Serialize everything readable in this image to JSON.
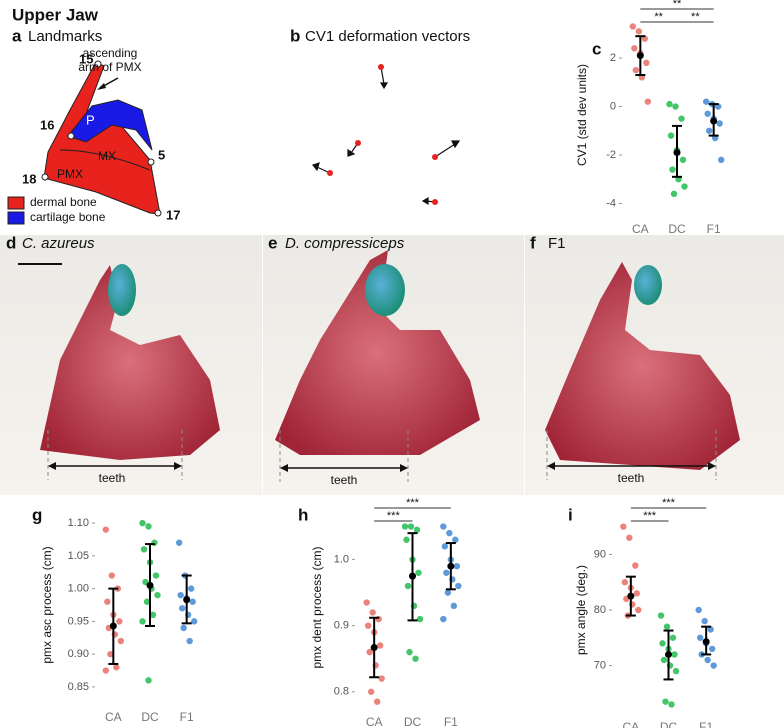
{
  "header": {
    "title": "Upper Jaw"
  },
  "panel_a": {
    "label": "a",
    "title": "Landmarks",
    "annotation": [
      "ascending",
      "arm of PMX"
    ],
    "landmarks": [
      "15",
      "16",
      "5",
      "18",
      "17"
    ],
    "regions": [
      "P",
      "MX",
      "PMX"
    ],
    "legend": [
      {
        "label": "dermal bone",
        "color": "#e8231d"
      },
      {
        "label": "cartilage bone",
        "color": "#1a1ae6"
      }
    ]
  },
  "panel_b": {
    "label": "b",
    "title": "CV1 deformation vectors"
  },
  "photos": [
    {
      "label": "d",
      "title": "C. azureus",
      "measure": "teeth"
    },
    {
      "label": "e",
      "title": "D. compressiceps",
      "measure": "teeth"
    },
    {
      "label": "f",
      "title": "F1",
      "measure": "teeth"
    }
  ],
  "chart_data": [
    {
      "type": "strip",
      "panel_label": "c",
      "ylabel": "CV1 (std dev units)",
      "categories": [
        "CA",
        "DC",
        "F1"
      ],
      "series": [
        {
          "color": "#e8756e",
          "values": [
            3.3,
            3.1,
            2.8,
            2.4,
            2.2,
            1.8,
            1.5,
            1.2,
            0.2
          ]
        },
        {
          "color": "#2fbf5a",
          "values": [
            0.1,
            0,
            -0.5,
            -1.2,
            -1.8,
            -2.2,
            -2.6,
            -3,
            -3.3,
            -3.6
          ]
        },
        {
          "color": "#4d8fd6",
          "values": [
            0.2,
            0.1,
            0,
            -0.3,
            -0.5,
            -0.7,
            -1.0,
            -1.3,
            -2.2
          ]
        }
      ],
      "means": [
        2.1,
        -1.9,
        -0.6
      ],
      "err_low": [
        1.3,
        -2.9,
        -1.2
      ],
      "err_high": [
        2.9,
        -0.8,
        0.1
      ],
      "ylim": [
        -4.35,
        3.65
      ],
      "yticks": [
        2,
        0,
        -2,
        -4
      ],
      "brackets": [
        {
          "from": "CA",
          "to": "DC",
          "text": "**"
        },
        {
          "from": "DC",
          "to": "F1",
          "text": "**"
        },
        {
          "from": "CA",
          "to": "F1",
          "text": "**"
        }
      ]
    },
    {
      "type": "strip",
      "panel_label": "g",
      "ylabel": "pmx asc process (cm)",
      "categories": [
        "CA",
        "DC",
        "F1"
      ],
      "series": [
        {
          "color": "#e8756e",
          "values": [
            1.09,
            1.02,
            1.0,
            0.98,
            0.96,
            0.95,
            0.94,
            0.93,
            0.92,
            0.9,
            0.88,
            0.875
          ]
        },
        {
          "color": "#2fbf5a",
          "values": [
            1.1,
            1.095,
            1.07,
            1.06,
            1.04,
            1.02,
            1.01,
            1.0,
            0.99,
            0.98,
            0.96,
            0.95,
            0.86
          ]
        },
        {
          "color": "#4d8fd6",
          "values": [
            1.07,
            1.02,
            1.0,
            0.99,
            0.985,
            0.98,
            0.97,
            0.96,
            0.95,
            0.94,
            0.92
          ]
        }
      ],
      "means": [
        0.943,
        1.005,
        0.983
      ],
      "err_low": [
        0.885,
        0.943,
        0.947
      ],
      "err_high": [
        1.0,
        1.068,
        1.02
      ],
      "ylim": [
        0.83,
        1.12
      ],
      "yticks": [
        {
          "value": 1.1,
          "label": "1.10"
        },
        1.05,
        {
          "value": 1,
          "label": "1.00"
        },
        0.95,
        {
          "value": 0.9,
          "label": "0.90"
        },
        0.85
      ],
      "brackets": []
    },
    {
      "type": "strip",
      "panel_label": "h",
      "ylabel": "pmx dent process (cm)",
      "categories": [
        "CA",
        "DC",
        "F1"
      ],
      "series": [
        {
          "color": "#e8756e",
          "values": [
            0.935,
            0.92,
            0.91,
            0.9,
            0.89,
            0.87,
            0.86,
            0.84,
            0.82,
            0.8,
            0.785
          ]
        },
        {
          "color": "#2fbf5a",
          "values": [
            1.05,
            1.05,
            1.045,
            1.03,
            1.0,
            0.98,
            0.96,
            0.93,
            0.91,
            0.86,
            0.85
          ]
        },
        {
          "color": "#4d8fd6",
          "values": [
            1.05,
            1.04,
            1.03,
            1.02,
            1.0,
            0.99,
            0.98,
            0.97,
            0.96,
            0.95,
            0.93,
            0.91
          ]
        }
      ],
      "means": [
        0.867,
        0.975,
        0.99
      ],
      "err_low": [
        0.822,
        0.908,
        0.955
      ],
      "err_high": [
        0.912,
        1.04,
        1.025
      ],
      "ylim": [
        0.78,
        1.075
      ],
      "yticks": [
        {
          "value": 1,
          "label": "1.0"
        },
        0.9,
        0.8
      ],
      "brackets": [
        {
          "from": "CA",
          "to": "DC",
          "text": "***"
        },
        {
          "from": "CA",
          "to": "F1",
          "text": "***"
        }
      ]
    },
    {
      "type": "strip",
      "panel_label": "i",
      "ylabel": "pmx angle (deg.)",
      "categories": [
        "CA",
        "DC",
        "F1"
      ],
      "series": [
        {
          "color": "#e8756e",
          "values": [
            95,
            93,
            88,
            85,
            84,
            83,
            82,
            81,
            80,
            79
          ]
        },
        {
          "color": "#2fbf5a",
          "values": [
            79,
            77,
            75,
            74,
            73,
            72,
            71,
            70,
            69,
            63.5,
            63
          ]
        },
        {
          "color": "#4d8fd6",
          "values": [
            80,
            78,
            76.5,
            75,
            74,
            73,
            72,
            71,
            70
          ]
        }
      ],
      "means": [
        82.5,
        72,
        74.3
      ],
      "err_low": [
        79,
        67.5,
        72
      ],
      "err_high": [
        86,
        76.3,
        77
      ],
      "ylim": [
        62,
        98
      ],
      "yticks": [
        90,
        80,
        70
      ],
      "brackets": [
        {
          "from": "CA",
          "to": "DC",
          "text": "***"
        },
        {
          "from": "CA",
          "to": "F1",
          "text": "***"
        }
      ]
    }
  ]
}
